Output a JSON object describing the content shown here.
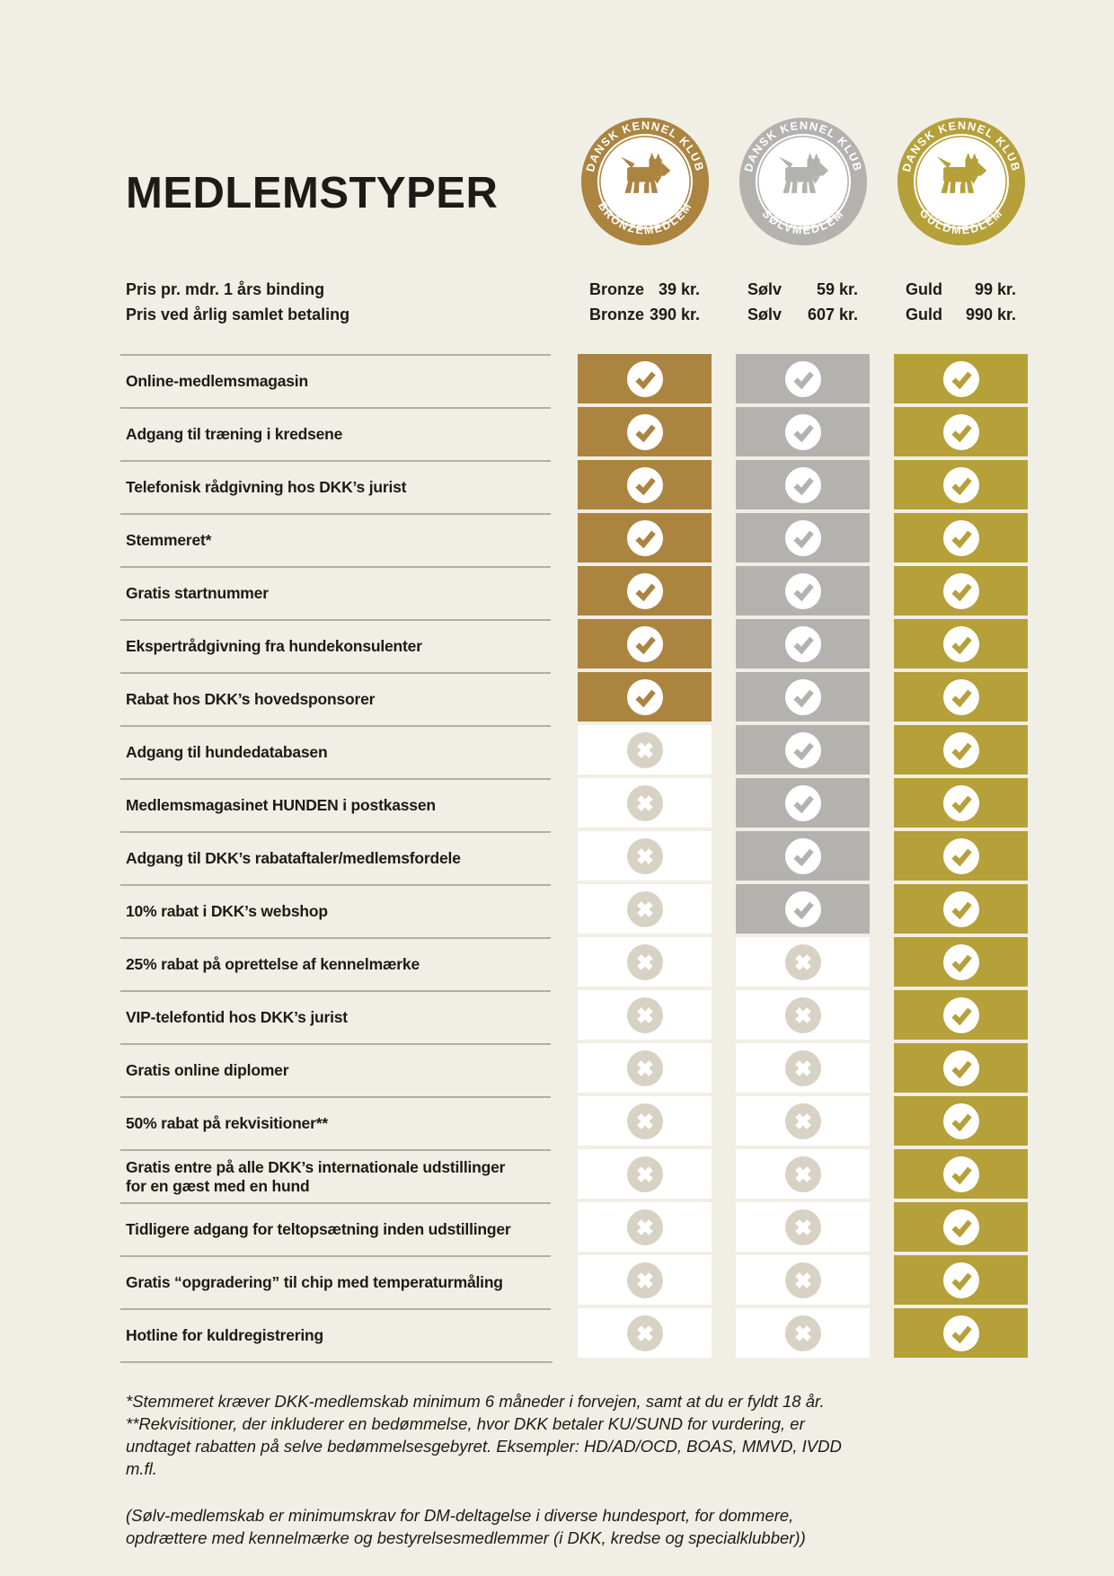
{
  "title": "MEDLEMSTYPER",
  "colors": {
    "background": "#f1eee5",
    "bronze": "#ab8440",
    "silver": "#b3b2ae",
    "gold": "#b5a039",
    "cross_circle": "#d7d2c3",
    "divider": "#b5ae9d",
    "text": "#1d1b18",
    "excluded_cell": "#ffffff"
  },
  "badges": [
    {
      "id": "bronze",
      "arc_top": "DANSK KENNEL KLUB",
      "arc_bottom": "BRONZEMEDLEM"
    },
    {
      "id": "silver",
      "arc_top": "DANSK KENNEL KLUB",
      "arc_bottom": "SØLVMEDLEM"
    },
    {
      "id": "gold",
      "arc_top": "DANSK KENNEL KLUB",
      "arc_bottom": "GULDMEDLEM"
    }
  ],
  "pricing": {
    "rows": [
      {
        "label": "Pris pr. mdr. 1 års binding",
        "values": [
          {
            "name": "Bronze",
            "price": "39 kr."
          },
          {
            "name": "Sølv",
            "price": "59 kr."
          },
          {
            "name": "Guld",
            "price": "99 kr."
          }
        ]
      },
      {
        "label": "Pris ved årlig samlet betaling",
        "values": [
          {
            "name": "Bronze",
            "price": "390 kr."
          },
          {
            "name": "Sølv",
            "price": "607 kr."
          },
          {
            "name": "Guld",
            "price": "990 kr."
          }
        ]
      }
    ]
  },
  "features": {
    "columns": [
      "bronze",
      "silver",
      "gold"
    ],
    "rows": [
      {
        "label": "Online-medlemsmagasin",
        "included": [
          true,
          true,
          true
        ]
      },
      {
        "label": "Adgang til træning i kredsene",
        "included": [
          true,
          true,
          true
        ]
      },
      {
        "label": "Telefonisk rådgivning hos DKK’s jurist",
        "included": [
          true,
          true,
          true
        ]
      },
      {
        "label": "Stemmeret*",
        "included": [
          true,
          true,
          true
        ]
      },
      {
        "label": "Gratis startnummer",
        "included": [
          true,
          true,
          true
        ]
      },
      {
        "label": "Ekspertrådgivning fra hundekonsulenter",
        "included": [
          true,
          true,
          true
        ]
      },
      {
        "label": "Rabat hos DKK’s hovedsponsorer",
        "included": [
          true,
          true,
          true
        ]
      },
      {
        "label": "Adgang til hundedatabasen",
        "included": [
          false,
          true,
          true
        ]
      },
      {
        "label": "Medlemsmagasinet HUNDEN i postkassen",
        "included": [
          false,
          true,
          true
        ]
      },
      {
        "label": "Adgang til DKK’s rabataftaler/medlemsfordele",
        "included": [
          false,
          true,
          true
        ]
      },
      {
        "label": "10% rabat i DKK’s webshop",
        "included": [
          false,
          true,
          true
        ]
      },
      {
        "label": "25% rabat på oprettelse af kennelmærke",
        "included": [
          false,
          false,
          true
        ]
      },
      {
        "label": "VIP-telefontid hos DKK’s jurist",
        "included": [
          false,
          false,
          true
        ]
      },
      {
        "label": "Gratis online diplomer",
        "included": [
          false,
          false,
          true
        ]
      },
      {
        "label": "50% rabat på rekvisitioner**",
        "included": [
          false,
          false,
          true
        ]
      },
      {
        "label": "Gratis entre på alle DKK’s internationale udstillinger\nfor en gæst med en hund",
        "included": [
          false,
          false,
          true
        ]
      },
      {
        "label": "Tidligere adgang for teltopsætning  inden udstillinger",
        "included": [
          false,
          false,
          true
        ]
      },
      {
        "label": "Gratis “opgradering” til chip med temperaturmåling",
        "included": [
          false,
          false,
          true
        ]
      },
      {
        "label": "Hotline for kuldregistrering",
        "included": [
          false,
          false,
          true
        ]
      }
    ]
  },
  "footnotes": [
    "*Stemmeret kræver DKK-medlemskab minimum 6 måneder i forvejen, samt at du er fyldt 18 år.",
    "**Rekvisitioner, der inkluderer en bedømmelse, hvor DKK betaler KU/SUND for vurdering, er undtaget rabatten på selve bedømmelsesgebyret. Eksempler: HD/AD/OCD, BOAS, MMVD, IVDD m.fl.",
    "(Sølv-medlemskab er minimumskrav for DM-deltagelse i diverse hundesport, for dommere, opdrættere med kennelmærke og bestyrelsesmedlemmer (i DKK, kredse og specialklubber))"
  ]
}
